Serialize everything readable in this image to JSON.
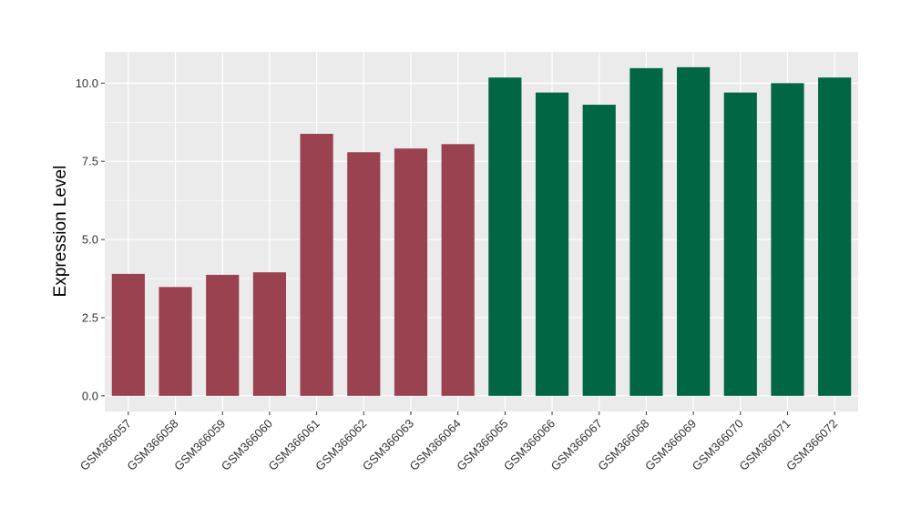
{
  "chart_data": {
    "type": "bar",
    "title": "",
    "xlabel": "",
    "ylabel": "Expression Level",
    "categories": [
      "GSM366057",
      "GSM366058",
      "GSM366059",
      "GSM366060",
      "GSM366061",
      "GSM366062",
      "GSM366063",
      "GSM366064",
      "GSM366065",
      "GSM366066",
      "GSM366067",
      "GSM366068",
      "GSM366069",
      "GSM366070",
      "GSM366071",
      "GSM366072"
    ],
    "values": [
      3.9,
      3.48,
      3.87,
      3.95,
      8.38,
      7.79,
      7.91,
      8.05,
      10.18,
      9.7,
      9.31,
      10.48,
      10.51,
      9.7,
      10.0,
      10.18
    ],
    "group_index": [
      0,
      0,
      0,
      0,
      0,
      0,
      0,
      0,
      1,
      1,
      1,
      1,
      1,
      1,
      1,
      1
    ],
    "group_colors": [
      "#9a4250",
      "#006644"
    ],
    "yticks": [
      0.0,
      2.5,
      5.0,
      7.5,
      10.0
    ],
    "ytick_labels": [
      "0.0",
      "2.5",
      "5.0",
      "7.5",
      "10.0"
    ],
    "ylim": [
      -0.5,
      11.0
    ],
    "grid": true,
    "legend": "none",
    "panel_background": "#ebebeb",
    "gridline_color": "#ffffff"
  }
}
